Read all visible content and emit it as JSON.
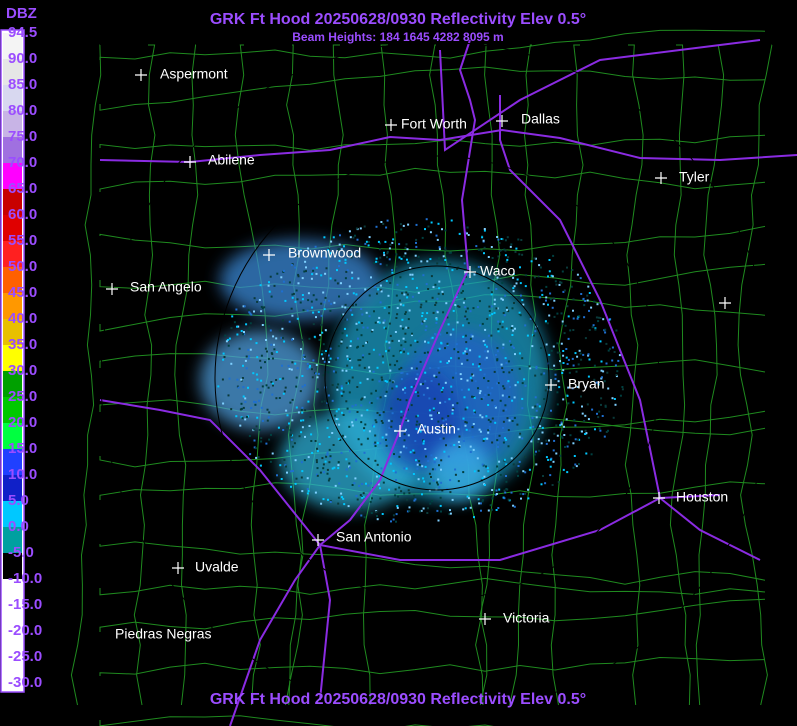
{
  "header": {
    "title": "GRK Ft Hood 20250628/0930 Reflectivity Elev 0.5°",
    "subtitle": "Beam Heights: 184 1645 4282 8095 m"
  },
  "legend": {
    "unit": "DBZ",
    "labels": [
      "94.5",
      "90.0",
      "85.0",
      "80.0",
      "75.0",
      "70.0",
      "65.0",
      "60.0",
      "55.0",
      "50.0",
      "45.0",
      "40.0",
      "35.0",
      "30.0",
      "25.0",
      "20.0",
      "15.0",
      "10.0",
      "5.0",
      "0.0",
      "-5.0",
      "-10.0",
      "-15.0",
      "-20.0",
      "-25.0",
      "-30.0"
    ]
  },
  "cities": [
    "Aspermont",
    "Fort Worth",
    "Dallas",
    "Abilene",
    "Tyler",
    "Brownwood",
    "Waco",
    "San Angelo",
    "Bryan",
    "Austin",
    "Houston",
    "San Antonio",
    "Uvalde",
    "Victoria",
    "Piedras Negras"
  ],
  "footer": {
    "title": "GRK Ft Hood 20250628/0930 Reflectivity Elev 0.5°"
  }
}
